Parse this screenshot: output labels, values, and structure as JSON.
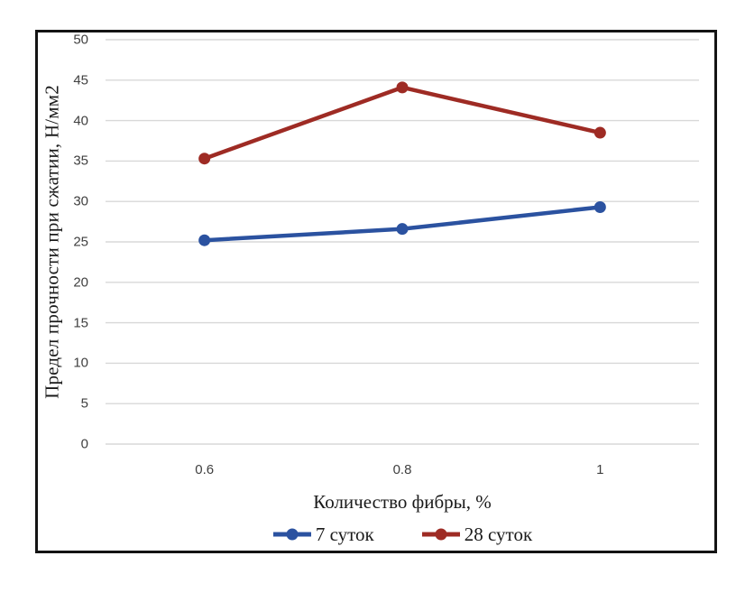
{
  "figure": {
    "border_color": "#141414",
    "background": "#ffffff",
    "gridline_color": "#D8D8D8",
    "tick_label_color": "#404040"
  },
  "chart_data": {
    "type": "line",
    "categories": [
      "0.6",
      "0.8",
      "1"
    ],
    "series": [
      {
        "name": "7 суток",
        "color": "#2B52A0",
        "values": [
          25.2,
          26.6,
          29.3
        ]
      },
      {
        "name": "28 суток",
        "color": "#9E2B24",
        "values": [
          35.3,
          44.1,
          38.5
        ]
      }
    ],
    "xlabel": "Количество фибры, %",
    "ylabel": "Предел прочности при сжатии, Н/мм2",
    "ylim": [
      0,
      50
    ],
    "ytick_step": 5,
    "grid": "horizontal",
    "legend_position": "bottom",
    "marker": "circle",
    "line_width": 4.5,
    "marker_radius": 6.5
  }
}
